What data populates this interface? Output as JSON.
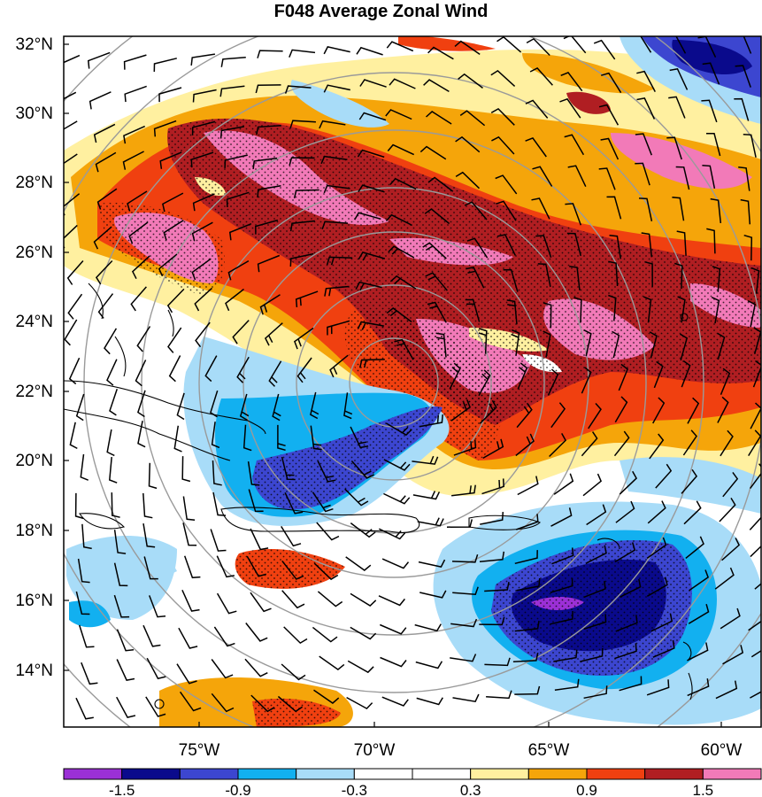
{
  "title": "F048 Average Zonal Wind",
  "map": {
    "lat_labels": [
      "32°N",
      "30°N",
      "28°N",
      "26°N",
      "24°N",
      "22°N",
      "20°N",
      "18°N",
      "16°N",
      "14°N"
    ],
    "lon_labels": [
      "75°W",
      "70°W",
      "65°W",
      "60°W"
    ],
    "lat_range": [
      12.5,
      32.2
    ],
    "lon_range": [
      -79.2,
      -59.3
    ],
    "range_ring_count": 8,
    "center": {
      "lat": 22.0,
      "lon": -68.5
    }
  },
  "colorbar": {
    "colors": [
      "#9b30d6",
      "#0a0a8c",
      "#3c46d0",
      "#12b0f0",
      "#a8dcf8",
      "#ffffff",
      "#ffffff",
      "#fff0a0",
      "#f5a50a",
      "#f04010",
      "#b01e22",
      "#f27ab8"
    ],
    "labels": [
      "-1.5",
      "-0.9",
      "-0.3",
      "0.3",
      "0.9",
      "1.5"
    ]
  },
  "colors": {
    "coast": "#000000",
    "rings": "#9a9a9a",
    "barbs": "#000000"
  }
}
